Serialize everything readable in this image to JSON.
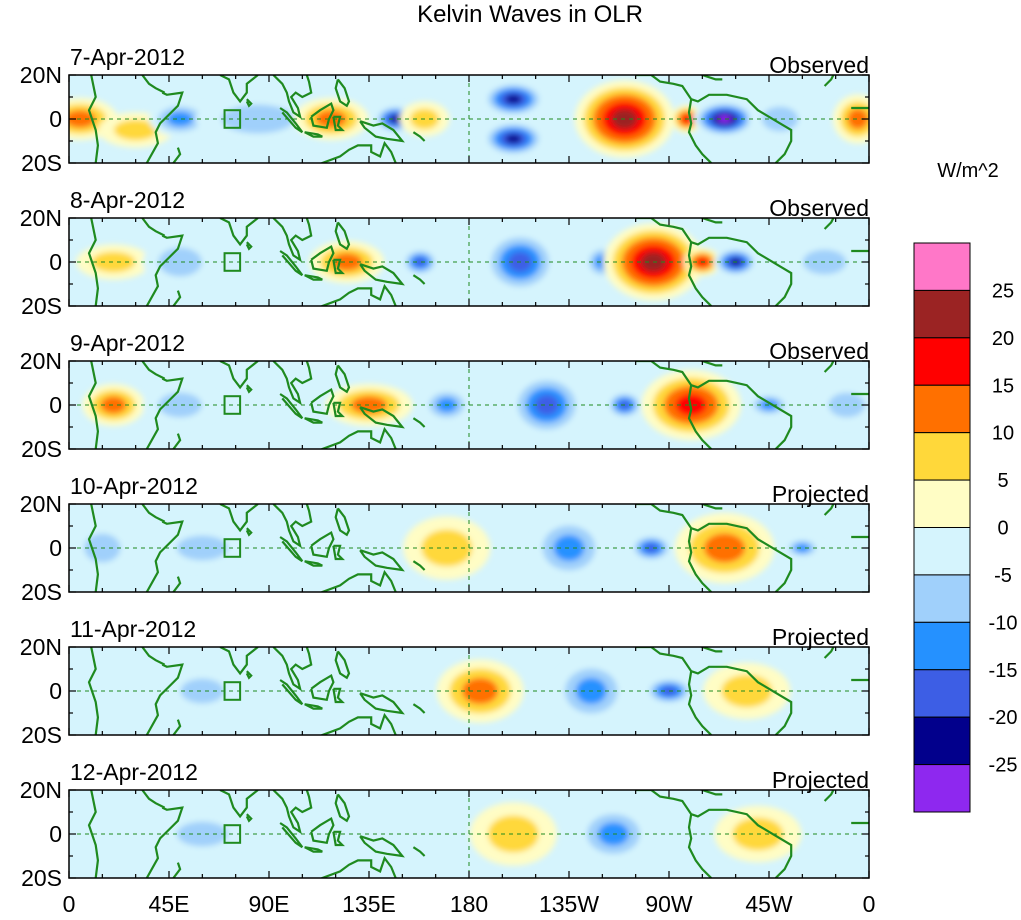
{
  "chart_data": {
    "type": "heatmap",
    "title": "Kelvin Waves in OLR",
    "units_label": "W/m^2",
    "x_ticks": [
      "0",
      "45E",
      "90E",
      "135E",
      "180",
      "135W",
      "90W",
      "45W",
      "0"
    ],
    "x_range_deg": [
      0,
      360
    ],
    "y_ticks": [
      "20N",
      "0",
      "20S"
    ],
    "y_range_deg": [
      -20,
      20
    ],
    "colorbar": {
      "levels": [
        "25",
        "20",
        "15",
        "10",
        "5",
        "0",
        "-5",
        "-10",
        "-15",
        "-20",
        "-25"
      ],
      "colors": [
        "#ff77c8",
        "#9b2323",
        "#ff0000",
        "#ff7000",
        "#ffd83a",
        "#fffdc5",
        "#d5f4fd",
        "#a0d0fb",
        "#2591ff",
        "#3d5ee5",
        "#02008c",
        "#8e28ef"
      ]
    },
    "panels": [
      {
        "date": "7-Apr-2012",
        "label": "Observed",
        "anomalies": [
          {
            "lon": 5,
            "lat": 0,
            "w": 12,
            "h": 12,
            "value": 10
          },
          {
            "lon": 30,
            "lat": -5,
            "w": 12,
            "h": 10,
            "value": 5
          },
          {
            "lon": 50,
            "lat": 0,
            "w": 10,
            "h": 10,
            "value": -10
          },
          {
            "lon": 85,
            "lat": 0,
            "w": 20,
            "h": 14,
            "value": -5
          },
          {
            "lon": 118,
            "lat": 0,
            "w": 12,
            "h": 12,
            "value": 12
          },
          {
            "lon": 147,
            "lat": 0,
            "w": 7,
            "h": 8,
            "value": -22
          },
          {
            "lon": 160,
            "lat": 0,
            "w": 8,
            "h": 10,
            "value": 5
          },
          {
            "lon": 200,
            "lat": 9,
            "w": 10,
            "h": 10,
            "value": -22
          },
          {
            "lon": 200,
            "lat": -9,
            "w": 10,
            "h": 10,
            "value": -22
          },
          {
            "lon": 250,
            "lat": 0,
            "w": 16,
            "h": 22,
            "value": 22
          },
          {
            "lon": 278,
            "lat": 0,
            "w": 5,
            "h": 8,
            "value": 15
          },
          {
            "lon": 295,
            "lat": 0,
            "w": 10,
            "h": 10,
            "value": -27
          },
          {
            "lon": 320,
            "lat": 0,
            "w": 10,
            "h": 12,
            "value": -5
          },
          {
            "lon": 355,
            "lat": 0,
            "w": 8,
            "h": 14,
            "value": 10
          }
        ]
      },
      {
        "date": "8-Apr-2012",
        "label": "Observed",
        "anomalies": [
          {
            "lon": 20,
            "lat": 0,
            "w": 12,
            "h": 10,
            "value": 5
          },
          {
            "lon": 50,
            "lat": 0,
            "w": 12,
            "h": 14,
            "value": -5
          },
          {
            "lon": 125,
            "lat": 0,
            "w": 12,
            "h": 12,
            "value": 12
          },
          {
            "lon": 158,
            "lat": 0,
            "w": 6,
            "h": 8,
            "value": -15
          },
          {
            "lon": 203,
            "lat": 0,
            "w": 12,
            "h": 18,
            "value": -15
          },
          {
            "lon": 240,
            "lat": 0,
            "w": 6,
            "h": 10,
            "value": -10
          },
          {
            "lon": 263,
            "lat": 0,
            "w": 16,
            "h": 22,
            "value": 22
          },
          {
            "lon": 285,
            "lat": 0,
            "w": 6,
            "h": 8,
            "value": 15
          },
          {
            "lon": 300,
            "lat": 0,
            "w": 7,
            "h": 8,
            "value": -22
          },
          {
            "lon": 340,
            "lat": 0,
            "w": 12,
            "h": 12,
            "value": -5
          }
        ]
      },
      {
        "date": "9-Apr-2012",
        "label": "Observed",
        "anomalies": [
          {
            "lon": 20,
            "lat": 0,
            "w": 10,
            "h": 12,
            "value": 10
          },
          {
            "lon": 50,
            "lat": 0,
            "w": 12,
            "h": 12,
            "value": -5
          },
          {
            "lon": 135,
            "lat": 0,
            "w": 14,
            "h": 12,
            "value": 12
          },
          {
            "lon": 170,
            "lat": 0,
            "w": 8,
            "h": 10,
            "value": -10
          },
          {
            "lon": 215,
            "lat": 0,
            "w": 12,
            "h": 18,
            "value": -15
          },
          {
            "lon": 250,
            "lat": 0,
            "w": 6,
            "h": 8,
            "value": -15
          },
          {
            "lon": 280,
            "lat": 0,
            "w": 16,
            "h": 20,
            "value": 15
          },
          {
            "lon": 315,
            "lat": 0,
            "w": 7,
            "h": 7,
            "value": -10
          },
          {
            "lon": 350,
            "lat": 0,
            "w": 10,
            "h": 12,
            "value": -5
          }
        ]
      },
      {
        "date": "10-Apr-2012",
        "label": "Projected",
        "anomalies": [
          {
            "lon": 15,
            "lat": 0,
            "w": 10,
            "h": 14,
            "value": -5
          },
          {
            "lon": 60,
            "lat": 0,
            "w": 14,
            "h": 12,
            "value": -5
          },
          {
            "lon": 170,
            "lat": 0,
            "w": 14,
            "h": 18,
            "value": 8
          },
          {
            "lon": 225,
            "lat": 0,
            "w": 12,
            "h": 18,
            "value": -12
          },
          {
            "lon": 262,
            "lat": 0,
            "w": 7,
            "h": 8,
            "value": -15
          },
          {
            "lon": 295,
            "lat": 0,
            "w": 16,
            "h": 20,
            "value": 12
          },
          {
            "lon": 330,
            "lat": 0,
            "w": 6,
            "h": 6,
            "value": -10
          }
        ]
      },
      {
        "date": "11-Apr-2012",
        "label": "Projected",
        "anomalies": [
          {
            "lon": 60,
            "lat": 0,
            "w": 12,
            "h": 12,
            "value": -5
          },
          {
            "lon": 185,
            "lat": 0,
            "w": 14,
            "h": 18,
            "value": 10
          },
          {
            "lon": 235,
            "lat": 0,
            "w": 12,
            "h": 18,
            "value": -12
          },
          {
            "lon": 270,
            "lat": 0,
            "w": 8,
            "h": 8,
            "value": -15
          },
          {
            "lon": 305,
            "lat": 0,
            "w": 14,
            "h": 16,
            "value": 8
          }
        ]
      },
      {
        "date": "12-Apr-2012",
        "label": "Projected",
        "anomalies": [
          {
            "lon": 60,
            "lat": 0,
            "w": 14,
            "h": 12,
            "value": -5
          },
          {
            "lon": 200,
            "lat": 0,
            "w": 14,
            "h": 18,
            "value": 8
          },
          {
            "lon": 245,
            "lat": 0,
            "w": 12,
            "h": 16,
            "value": -10
          },
          {
            "lon": 310,
            "lat": 0,
            "w": 14,
            "h": 16,
            "value": 6
          }
        ]
      }
    ]
  }
}
